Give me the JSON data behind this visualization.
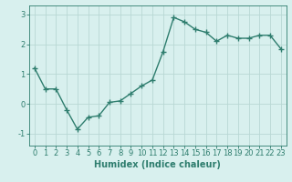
{
  "x": [
    0,
    1,
    2,
    3,
    4,
    5,
    6,
    7,
    8,
    9,
    10,
    11,
    12,
    13,
    14,
    15,
    16,
    17,
    18,
    19,
    20,
    21,
    22,
    23
  ],
  "y": [
    1.2,
    0.5,
    0.5,
    -0.2,
    -0.85,
    -0.45,
    -0.4,
    0.05,
    0.1,
    0.35,
    0.6,
    0.8,
    1.75,
    2.9,
    2.75,
    2.5,
    2.4,
    2.1,
    2.3,
    2.2,
    2.2,
    2.3,
    2.3,
    1.85
  ],
  "line_color": "#2e7d6e",
  "marker": "+",
  "marker_size": 4,
  "linewidth": 1.0,
  "bg_color": "#d8f0ee",
  "grid_color": "#b8d8d4",
  "xlabel": "Humidex (Indice chaleur)",
  "xlabel_fontsize": 7,
  "yticks": [
    -1,
    0,
    1,
    2,
    3
  ],
  "xticks": [
    0,
    1,
    2,
    3,
    4,
    5,
    6,
    7,
    8,
    9,
    10,
    11,
    12,
    13,
    14,
    15,
    16,
    17,
    18,
    19,
    20,
    21,
    22,
    23
  ],
  "ylim": [
    -1.4,
    3.3
  ],
  "xlim": [
    -0.5,
    23.5
  ],
  "tick_fontsize": 6,
  "axis_color": "#2e7d6e"
}
